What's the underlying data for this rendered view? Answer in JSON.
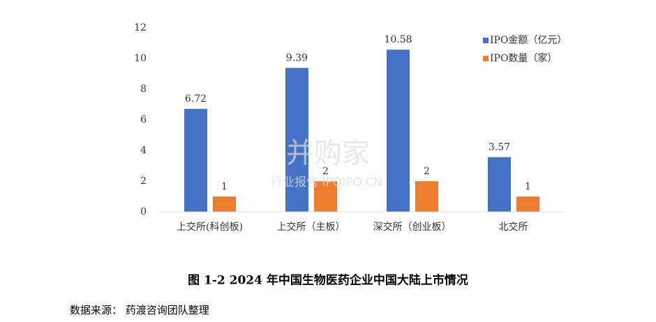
{
  "chart_data": {
    "type": "bar",
    "categories": [
      "上交所(科创板)",
      "上交所（主板）",
      "深交所（创业板）",
      "北交所"
    ],
    "series": [
      {
        "name": "IPO金额（亿元）",
        "color": "#4472c4",
        "values": [
          6.72,
          9.39,
          10.58,
          3.57
        ]
      },
      {
        "name": "IPO数量（家）",
        "color": "#ed7d31",
        "values": [
          1,
          2,
          2,
          1
        ]
      }
    ],
    "ylim": [
      0,
      12
    ],
    "yticks": [
      0,
      2,
      4,
      6,
      8,
      10,
      12
    ],
    "grid": false,
    "legend": "top-right",
    "caption": "图 1-2 2024 年中国生物医药企业中国大陆上市情况",
    "source": "数据来源：  药渡咨询团队整理",
    "watermark": [
      "并购家",
      "行业报告 IPOIPO.CN"
    ]
  }
}
